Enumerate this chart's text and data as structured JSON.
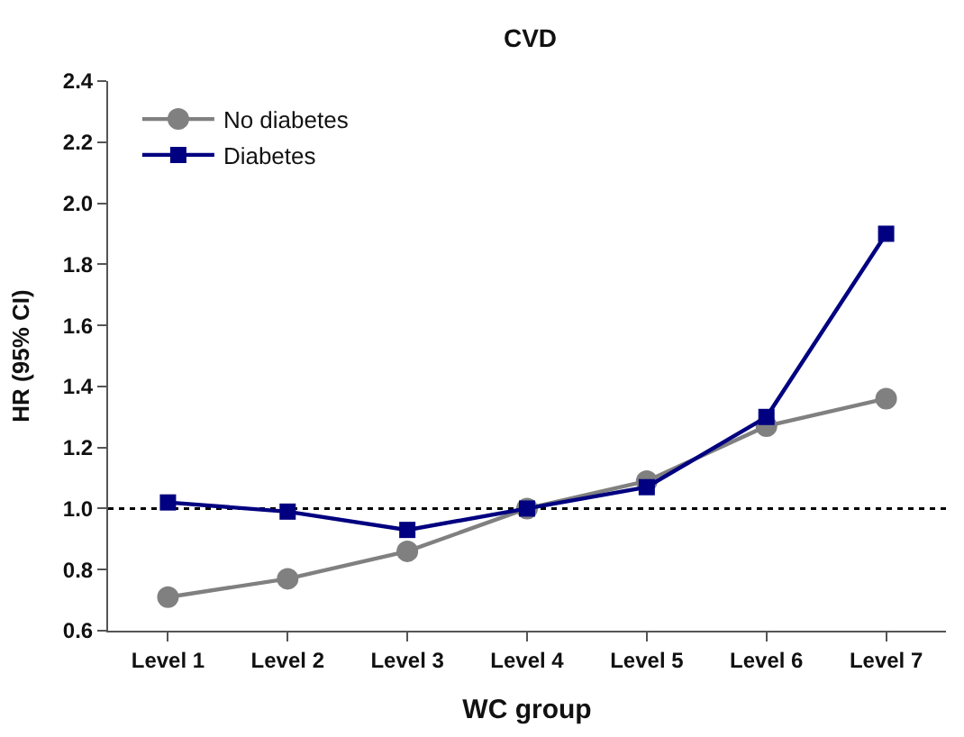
{
  "chart_data": {
    "type": "line",
    "title": "CVD",
    "xlabel": "WC group",
    "ylabel": "HR (95% CI)",
    "categories": [
      "Level 1",
      "Level 2",
      "Level 3",
      "Level 4",
      "Level 5",
      "Level 6",
      "Level 7"
    ],
    "series": [
      {
        "name": "No diabetes",
        "color": "#808080",
        "marker": "circle",
        "values": [
          0.71,
          0.77,
          0.86,
          1.0,
          1.09,
          1.27,
          1.36
        ]
      },
      {
        "name": "Diabetes",
        "color": "#000080",
        "marker": "square",
        "values": [
          1.02,
          0.99,
          0.93,
          1.0,
          1.07,
          1.3,
          1.9
        ]
      }
    ],
    "ylim": [
      0.6,
      2.4
    ],
    "yticks": [
      0.6,
      0.8,
      {
        "value": 1,
        "label": "1.0"
      },
      1.2,
      1.4,
      1.6,
      1.8,
      {
        "value": 2,
        "label": "2.0"
      },
      2.2,
      2.4
    ],
    "ref_lines": [
      {
        "axis": "y",
        "value": 1.0,
        "color": "#000000",
        "line_style": "dotted"
      }
    ],
    "grid": false,
    "legend": "top left",
    "line_style": "solid"
  }
}
